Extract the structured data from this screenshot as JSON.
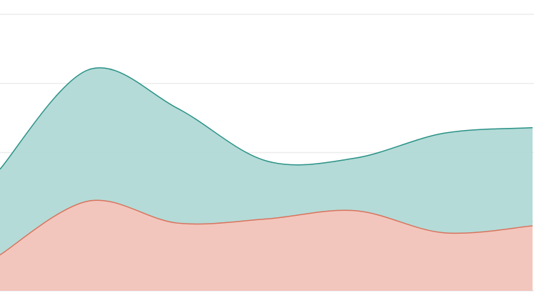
{
  "chart_data": {
    "type": "area",
    "categories": [
      null,
      null,
      null,
      null,
      null,
      null,
      null
    ],
    "series": [
      {
        "color": "#2a9187",
        "fill": "#b0d9d5",
        "values": [
          44,
          80,
          66,
          47,
          48,
          57,
          59
        ]
      },
      {
        "color": "#d9735e",
        "fill": "#f5c5bb",
        "values": [
          13,
          32.5,
          24.5,
          26,
          29,
          21,
          23.5
        ]
      }
    ],
    "ylim": [
      0,
      100
    ],
    "yticks": [
      0,
      25,
      50,
      75,
      100
    ],
    "grid": true
  }
}
